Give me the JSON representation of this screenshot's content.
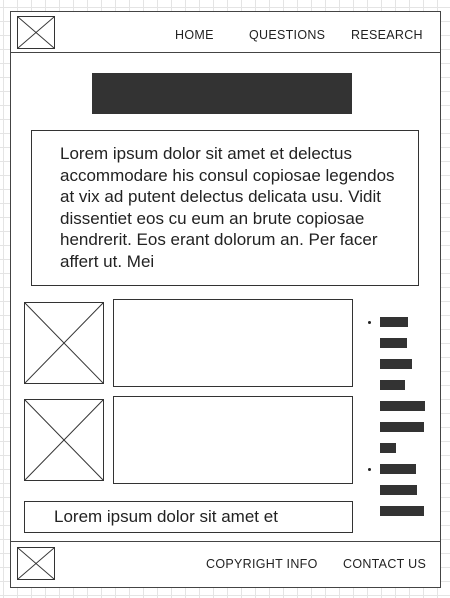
{
  "header": {
    "nav": {
      "home": "HOME",
      "questions": "QUESTIONS",
      "research": "RESEARCH"
    }
  },
  "main": {
    "intro_text": "Lorem ipsum dolor sit amet et delectus accommodare his consul copiosae legendos at vix ad putent delectus delicata usu. Vidit dissentiet eos cu eum an brute copiosae hendrerit. Eos erant dolorum an. Per facer affert ut. Mei",
    "caption_text": "Lorem ipsum dolor sit amet et"
  },
  "sidebar": {
    "list_groups": 2,
    "list_items": 10
  },
  "footer": {
    "copyright": "COPYRIGHT INFO",
    "contact": "CONTACT US"
  },
  "colors": {
    "ink": "#333333",
    "frame_border": "#444444",
    "grid": "#e4e4e4"
  }
}
